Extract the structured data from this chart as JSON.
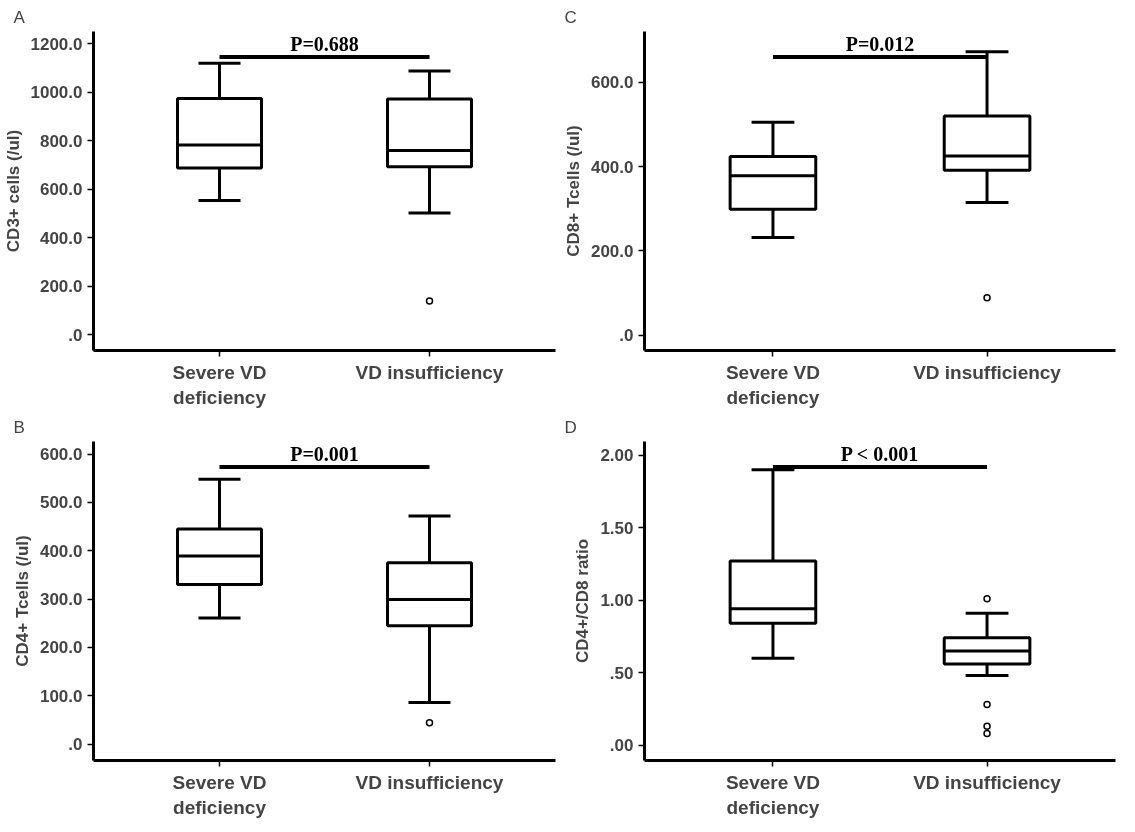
{
  "chart_data": [
    {
      "type": "box",
      "title": "A",
      "ylabel": "CD3+ cells (/ul)",
      "categories": [
        "Severe VD\ndeficiency",
        "VD insufficiency"
      ],
      "annotations": [
        "P=0.688"
      ],
      "ylim": [
        -65,
        1250
      ],
      "yticks": [
        {
          "value": 0,
          "label": ".0"
        },
        {
          "value": 200,
          "label": "200.0"
        },
        {
          "value": 400,
          "label": "400.0"
        },
        {
          "value": 600,
          "label": "600.0"
        },
        {
          "value": 800,
          "label": "800.0"
        },
        {
          "value": 1000,
          "label": "1000.0"
        },
        {
          "value": 1200,
          "label": "1200.0"
        }
      ],
      "boxes": [
        {
          "low": 553,
          "q1": 687,
          "median": 782,
          "q3": 974,
          "high": 1119
        },
        {
          "low": 502,
          "q1": 692,
          "median": 759,
          "q3": 972,
          "high": 1087,
          "outliers": [
            139
          ]
        }
      ]
    },
    {
      "type": "box",
      "title": "C",
      "ylabel": "CD8+ Tcells (/ul)",
      "categories": [
        "Severe VD\ndeficiency",
        "VD insufficiency"
      ],
      "annotations": [
        "P=0.012"
      ],
      "ylim": [
        -36,
        720
      ],
      "yticks": [
        {
          "value": 0,
          "label": ".0"
        },
        {
          "value": 200,
          "label": "200.0"
        },
        {
          "value": 400,
          "label": "400.0"
        },
        {
          "value": 600,
          "label": "600.0"
        }
      ],
      "boxes": [
        {
          "low": 232,
          "q1": 299,
          "median": 378,
          "q3": 424,
          "high": 505
        },
        {
          "low": 315,
          "q1": 391,
          "median": 425,
          "q3": 520,
          "high": 672,
          "outliers": [
            89
          ]
        }
      ]
    },
    {
      "type": "box",
      "title": "B",
      "ylabel": "CD4+ Tcells (/ul)",
      "categories": [
        "Severe VD\ndeficiency",
        "VD insufficiency"
      ],
      "annotations": [
        "P=0.001"
      ],
      "ylim": [
        -34,
        626
      ],
      "yticks": [
        {
          "value": 0,
          "label": ".0"
        },
        {
          "value": 100,
          "label": "100.0"
        },
        {
          "value": 200,
          "label": "200.0"
        },
        {
          "value": 300,
          "label": "300.0"
        },
        {
          "value": 400,
          "label": "400.0"
        },
        {
          "value": 500,
          "label": "500.0"
        },
        {
          "value": 600,
          "label": "600.0"
        }
      ],
      "boxes": [
        {
          "low": 261,
          "q1": 330,
          "median": 389,
          "q3": 445,
          "high": 548
        },
        {
          "low": 86,
          "q1": 245,
          "median": 299,
          "q3": 375,
          "high": 472,
          "outliers": [
            44
          ]
        }
      ]
    },
    {
      "type": "box",
      "title": "D",
      "ylabel": "CD4+/CD8 ratio",
      "categories": [
        "Severe VD\ndeficiency",
        "VD insufficiency"
      ],
      "annotations": [
        "P < 0.001"
      ],
      "ylim": [
        -0.106,
        2.094
      ],
      "yticks": [
        {
          "value": 0,
          "label": ".00"
        },
        {
          "value": 0.5,
          "label": ".50"
        },
        {
          "value": 1,
          "label": "1.00"
        },
        {
          "value": 1.5,
          "label": "1.50"
        },
        {
          "value": 2,
          "label": "2.00"
        }
      ],
      "boxes": [
        {
          "low": 0.6,
          "q1": 0.84,
          "median": 0.94,
          "q3": 1.27,
          "high": 1.9
        },
        {
          "low": 0.48,
          "q1": 0.56,
          "median": 0.65,
          "q3": 0.74,
          "high": 0.91,
          "outliers": [
            1.01,
            0.28,
            0.13,
            0.08
          ]
        }
      ]
    }
  ]
}
